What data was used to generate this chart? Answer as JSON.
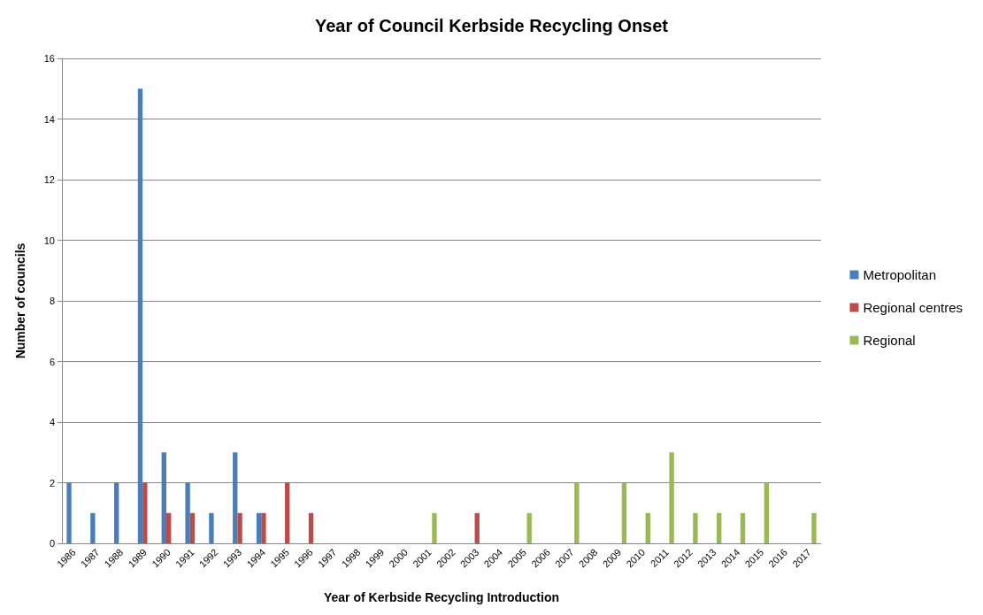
{
  "chart_data": {
    "type": "bar",
    "title": "Year of Council Kerbside Recycling Onset",
    "xlabel": "Year of Kerbside Recycling Introduction",
    "ylabel": "Number of councils",
    "categories": [
      "1986",
      "1987",
      "1988",
      "1989",
      "1990",
      "1991",
      "1992",
      "1993",
      "1994",
      "1995",
      "1996",
      "1997",
      "1998",
      "1999",
      "2000",
      "2001",
      "2002",
      "2003",
      "2004",
      "2005",
      "2006",
      "2007",
      "2008",
      "2009",
      "2010",
      "2011",
      "2012",
      "2013",
      "2014",
      "2015",
      "2016",
      "2017"
    ],
    "series": [
      {
        "name": "Metropolitan",
        "color": "#4a7ebb",
        "values": [
          2,
          1,
          2,
          15,
          3,
          2,
          1,
          3,
          1,
          0,
          0,
          0,
          0,
          0,
          0,
          0,
          0,
          0,
          0,
          0,
          0,
          0,
          0,
          0,
          0,
          0,
          0,
          0,
          0,
          0,
          0,
          0
        ]
      },
      {
        "name": "Regional centres",
        "color": "#be4b48",
        "values": [
          0,
          0,
          0,
          2,
          1,
          1,
          0,
          1,
          1,
          2,
          1,
          0,
          0,
          0,
          0,
          0,
          0,
          1,
          0,
          0,
          0,
          0,
          0,
          0,
          0,
          0,
          0,
          0,
          0,
          0,
          0,
          0
        ]
      },
      {
        "name": "Regional",
        "color": "#98b954",
        "values": [
          0,
          0,
          0,
          0,
          0,
          0,
          0,
          0,
          0,
          0,
          0,
          0,
          0,
          0,
          0,
          1,
          0,
          0,
          0,
          1,
          0,
          2,
          0,
          2,
          1,
          3,
          1,
          1,
          1,
          2,
          0,
          1
        ]
      }
    ],
    "ylim": [
      0,
      16
    ],
    "yticks": [
      0,
      2,
      4,
      6,
      8,
      10,
      12,
      14,
      16
    ],
    "grid": "y",
    "legend": "right"
  }
}
